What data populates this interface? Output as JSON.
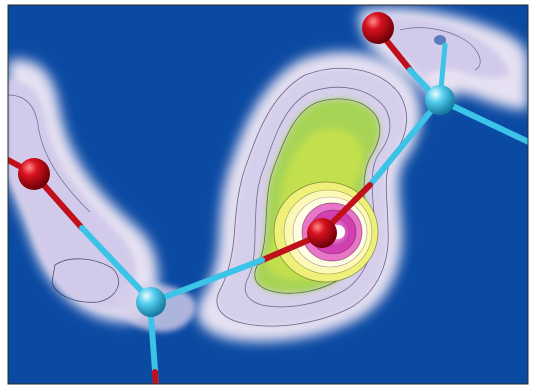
{
  "image": {
    "kind": "electron-density-contour-rendering",
    "background_color": "#0b4aa3",
    "border_color": "#2a2a2a",
    "palette": {
      "halo_outer": "#e9e4f3",
      "halo_mid": "#cfc6e6",
      "green_outer": "#b7d86b",
      "green_inner": "#9fcf3f",
      "yellow": "#f2ef72",
      "light_yellow": "#fffbd0",
      "pink": "#d43db2",
      "magenta": "#e050c5",
      "core_white": "#ffffff",
      "contour_line": "#1a1a3a",
      "oxygen_atom": "#c0101c",
      "bond_cyan": "#3cc3e8",
      "silicon_atom": "#42c7ea"
    }
  },
  "atoms": [
    {
      "id": "O-top",
      "element": "oxygen"
    },
    {
      "id": "O-left",
      "element": "oxygen"
    },
    {
      "id": "O-center",
      "element": "oxygen"
    },
    {
      "id": "Si-right",
      "element": "silicon"
    },
    {
      "id": "Si-bottom",
      "element": "silicon"
    }
  ]
}
